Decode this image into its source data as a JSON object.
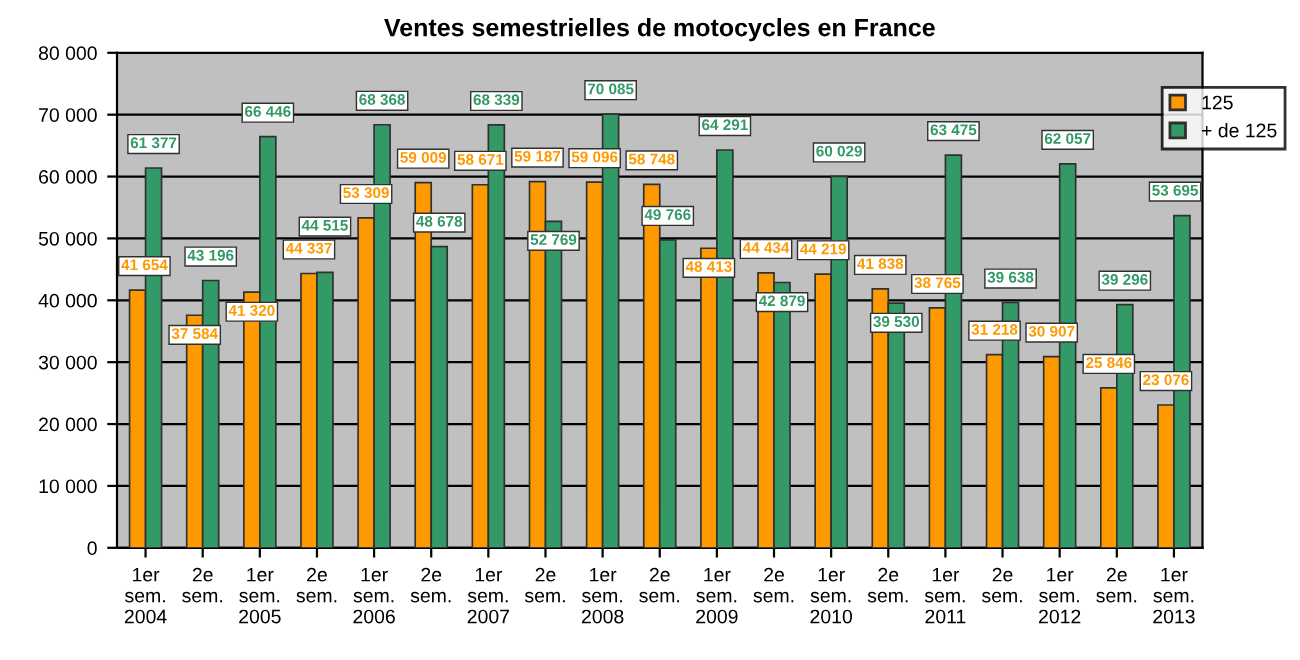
{
  "chart_data": {
    "type": "bar",
    "title": "Ventes semestrielles de motocycles en France",
    "categories": [
      "1er\nsem.\n2004",
      "2e\nsem.",
      "1er\nsem.\n2005",
      "2e\nsem.",
      "1er\nsem.\n2006",
      "2e\nsem.",
      "1er\nsem.\n2007",
      "2e\nsem.",
      "1er\nsem.\n2008",
      "2e\nsem.",
      "1er\nsem.\n2009",
      "2e\nsem.",
      "1er\nsem.\n2010",
      "2e\nsem.",
      "1er\nsem.\n2011",
      "2e\nsem.",
      "1er\nsem.\n2012",
      "2e\nsem.",
      "1er\nsem.\n2013"
    ],
    "series": [
      {
        "name": "125",
        "color": "#ff9900",
        "values": [
          41654,
          37584,
          41320,
          44337,
          53309,
          59009,
          58671,
          59187,
          59096,
          58748,
          48413,
          44434,
          44219,
          41838,
          38765,
          31218,
          30907,
          25846,
          23076
        ],
        "value_labels": [
          "41 654",
          "37 584",
          "41 320",
          "44 337",
          "53 309",
          "59 009",
          "58 671",
          "59 187",
          "59 096",
          "58 748",
          "48 413",
          "44 434",
          "44 219",
          "41 838",
          "38 765",
          "31 218",
          "30 907",
          "25 846",
          "23 076"
        ]
      },
      {
        "name": "+ de 125",
        "color": "#339966",
        "values": [
          61377,
          43196,
          66446,
          44515,
          68368,
          48678,
          68339,
          52769,
          70085,
          49766,
          64291,
          42879,
          60029,
          39530,
          63475,
          39638,
          62057,
          39296,
          53695
        ],
        "value_labels": [
          "61 377",
          "43 196",
          "66 446",
          "44 515",
          "68 368",
          "48 678",
          "68 339",
          "52 769",
          "70 085",
          "49 766",
          "64 291",
          "42 879",
          "60 029",
          "39 530",
          "63 475",
          "39 638",
          "62 057",
          "39 296",
          "53 695"
        ]
      }
    ],
    "ylim": [
      0,
      80000
    ],
    "yticks": [
      {
        "value": 0,
        "label": "0"
      },
      {
        "value": 10000,
        "label": "10 000"
      },
      {
        "value": 20000,
        "label": "20 000"
      },
      {
        "value": 30000,
        "label": "30 000"
      },
      {
        "value": 40000,
        "label": "40 000"
      },
      {
        "value": 50000,
        "label": "50 000"
      },
      {
        "value": 60000,
        "label": "60 000"
      },
      {
        "value": 70000,
        "label": "70 000"
      },
      {
        "value": 80000,
        "label": "80 000"
      }
    ],
    "grid": "y",
    "legend": "top right"
  }
}
